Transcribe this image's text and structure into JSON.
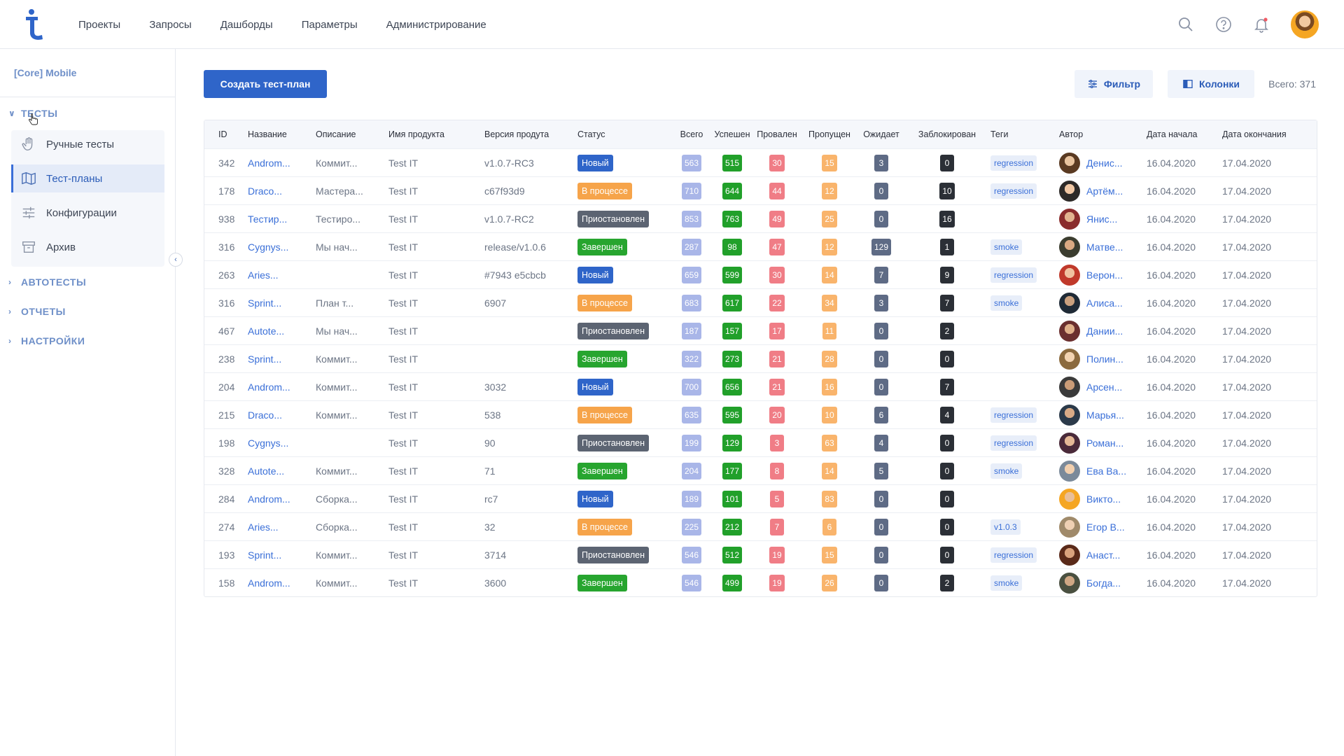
{
  "header": {
    "nav": [
      "Проекты",
      "Запросы",
      "Дашборды",
      "Параметры",
      "Администрирование"
    ],
    "icons": [
      "search-icon",
      "help-icon",
      "notification-bell-icon"
    ],
    "accent": "#2f65c9"
  },
  "sidebar": {
    "project": "[Core] Mobile",
    "sections": {
      "tests": "ТЕСТЫ",
      "autotests": "АВТОТЕСТЫ",
      "reports": "ОТЧЕТЫ",
      "settings": "НАСТРОЙКИ"
    },
    "items": [
      {
        "label": "Ручные тесты",
        "icon": "hand-icon",
        "active": false
      },
      {
        "label": "Тест-планы",
        "icon": "map-icon",
        "active": true
      },
      {
        "label": "Конфигурации",
        "icon": "sliders-icon",
        "active": false
      },
      {
        "label": "Архив",
        "icon": "archive-icon",
        "active": false
      }
    ]
  },
  "toolbar": {
    "create_label": "Создать тест-план",
    "filter_label": "Фильтр",
    "columns_label": "Колонки",
    "total_label": "Всего: 371"
  },
  "table": {
    "columns": [
      "ID",
      "Название",
      "Описание",
      "Имя продукта",
      "Версия продута",
      "Статус",
      "Всего",
      "Успешен",
      "Провален",
      "Пропущен",
      "Ожидает",
      "Заблокирован",
      "Теги",
      "Автор",
      "Дата начала",
      "Дата окончания"
    ],
    "rows": [
      {
        "id": "342",
        "name": "Androm...",
        "desc": "Коммит...",
        "product": "Test IT",
        "version": "v1.0.7-RC3",
        "status": "Новый",
        "st": "new",
        "total": "563",
        "succ": "515",
        "fail": "30",
        "skip": "15",
        "wait": "3",
        "block": "0",
        "tag": "regression",
        "author": "Денис...",
        "start": "16.04.2020",
        "end": "17.04.2020"
      },
      {
        "id": "178",
        "name": "Draco...",
        "desc": "Мастера...",
        "product": "Test IT",
        "version": "c67f93d9",
        "status": "В процессе",
        "st": "proc",
        "total": "710",
        "succ": "644",
        "fail": "44",
        "skip": "12",
        "wait": "0",
        "block": "10",
        "tag": "regression",
        "author": "Артём...",
        "start": "16.04.2020",
        "end": "17.04.2020"
      },
      {
        "id": "938",
        "name": "Тестир...",
        "desc": "Тестиро...",
        "product": "Test IT",
        "version": "v1.0.7-RC2",
        "status": "Приостановлен",
        "st": "pause",
        "total": "853",
        "succ": "763",
        "fail": "49",
        "skip": "25",
        "wait": "0",
        "block": "16",
        "tag": "",
        "author": "Янис...",
        "start": "16.04.2020",
        "end": "17.04.2020"
      },
      {
        "id": "316",
        "name": "Cygnys...",
        "desc": "Мы нач...",
        "product": "Test IT",
        "version": "release/v1.0.6",
        "status": "Завершен",
        "st": "done",
        "total": "287",
        "succ": "98",
        "fail": "47",
        "skip": "12",
        "wait": "129",
        "block": "1",
        "tag": "smoke",
        "author": "Матве...",
        "start": "16.04.2020",
        "end": "17.04.2020"
      },
      {
        "id": "263",
        "name": "Aries...",
        "desc": "",
        "product": "Test IT",
        "version": "#7943 e5cbcb",
        "status": "Новый",
        "st": "new",
        "total": "659",
        "succ": "599",
        "fail": "30",
        "skip": "14",
        "wait": "7",
        "block": "9",
        "tag": "regression",
        "author": "Верон...",
        "start": "16.04.2020",
        "end": "17.04.2020"
      },
      {
        "id": "316",
        "name": "Sprint...",
        "desc": "План т...",
        "product": "Test IT",
        "version": "6907",
        "status": "В процессе",
        "st": "proc",
        "total": "683",
        "succ": "617",
        "fail": "22",
        "skip": "34",
        "wait": "3",
        "block": "7",
        "tag": "smoke",
        "author": "Алиса...",
        "start": "16.04.2020",
        "end": "17.04.2020"
      },
      {
        "id": "467",
        "name": "Autote...",
        "desc": "Мы нач...",
        "product": "Test IT",
        "version": "",
        "status": "Приостановлен",
        "st": "pause",
        "total": "187",
        "succ": "157",
        "fail": "17",
        "skip": "11",
        "wait": "0",
        "block": "2",
        "tag": "",
        "author": "Дании...",
        "start": "16.04.2020",
        "end": "17.04.2020"
      },
      {
        "id": "238",
        "name": "Sprint...",
        "desc": "Коммит...",
        "product": "Test IT",
        "version": "",
        "status": "Завершен",
        "st": "done",
        "total": "322",
        "succ": "273",
        "fail": "21",
        "skip": "28",
        "wait": "0",
        "block": "0",
        "tag": "",
        "author": "Полин...",
        "start": "16.04.2020",
        "end": "17.04.2020"
      },
      {
        "id": "204",
        "name": "Androm...",
        "desc": "Коммит...",
        "product": "Test IT",
        "version": "3032",
        "status": "Новый",
        "st": "new",
        "total": "700",
        "succ": "656",
        "fail": "21",
        "skip": "16",
        "wait": "0",
        "block": "7",
        "tag": "",
        "author": "Арсен...",
        "start": "16.04.2020",
        "end": "17.04.2020"
      },
      {
        "id": "215",
        "name": "Draco...",
        "desc": "Коммит...",
        "product": "Test IT",
        "version": "538",
        "status": "В процессе",
        "st": "proc",
        "total": "635",
        "succ": "595",
        "fail": "20",
        "skip": "10",
        "wait": "6",
        "block": "4",
        "tag": "regression",
        "author": "Марья...",
        "start": "16.04.2020",
        "end": "17.04.2020"
      },
      {
        "id": "198",
        "name": "Cygnys...",
        "desc": "",
        "product": "Test IT",
        "version": "90",
        "status": "Приостановлен",
        "st": "pause",
        "total": "199",
        "succ": "129",
        "fail": "3",
        "skip": "63",
        "wait": "4",
        "block": "0",
        "tag": "regression",
        "author": "Роман...",
        "start": "16.04.2020",
        "end": "17.04.2020"
      },
      {
        "id": "328",
        "name": "Autote...",
        "desc": "Коммит...",
        "product": "Test IT",
        "version": "71",
        "status": "Завершен",
        "st": "done",
        "total": "204",
        "succ": "177",
        "fail": "8",
        "skip": "14",
        "wait": "5",
        "block": "0",
        "tag": "smoke",
        "author": "Ева Ва...",
        "start": "16.04.2020",
        "end": "17.04.2020"
      },
      {
        "id": "284",
        "name": "Androm...",
        "desc": "Сборка...",
        "product": "Test IT",
        "version": "rc7",
        "status": "Новый",
        "st": "new",
        "total": "189",
        "succ": "101",
        "fail": "5",
        "skip": "83",
        "wait": "0",
        "block": "0",
        "tag": "",
        "author": "Викто...",
        "start": "16.04.2020",
        "end": "17.04.2020"
      },
      {
        "id": "274",
        "name": "Aries...",
        "desc": "Сборка...",
        "product": "Test IT",
        "version": "32",
        "status": "В процессе",
        "st": "proc",
        "total": "225",
        "succ": "212",
        "fail": "7",
        "skip": "6",
        "wait": "0",
        "block": "0",
        "tag": "v1.0.3",
        "author": "Егор В...",
        "start": "16.04.2020",
        "end": "17.04.2020"
      },
      {
        "id": "193",
        "name": "Sprint...",
        "desc": "Коммит...",
        "product": "Test IT",
        "version": "3714",
        "status": "Приостановлен",
        "st": "pause",
        "total": "546",
        "succ": "512",
        "fail": "19",
        "skip": "15",
        "wait": "0",
        "block": "0",
        "tag": "regression",
        "author": "Анаст...",
        "start": "16.04.2020",
        "end": "17.04.2020"
      },
      {
        "id": "158",
        "name": "Androm...",
        "desc": "Коммит...",
        "product": "Test IT",
        "version": "3600",
        "status": "Завершен",
        "st": "done",
        "total": "546",
        "succ": "499",
        "fail": "19",
        "skip": "26",
        "wait": "0",
        "block": "2",
        "tag": "smoke",
        "author": "Богда...",
        "start": "16.04.2020",
        "end": "17.04.2020"
      }
    ]
  }
}
